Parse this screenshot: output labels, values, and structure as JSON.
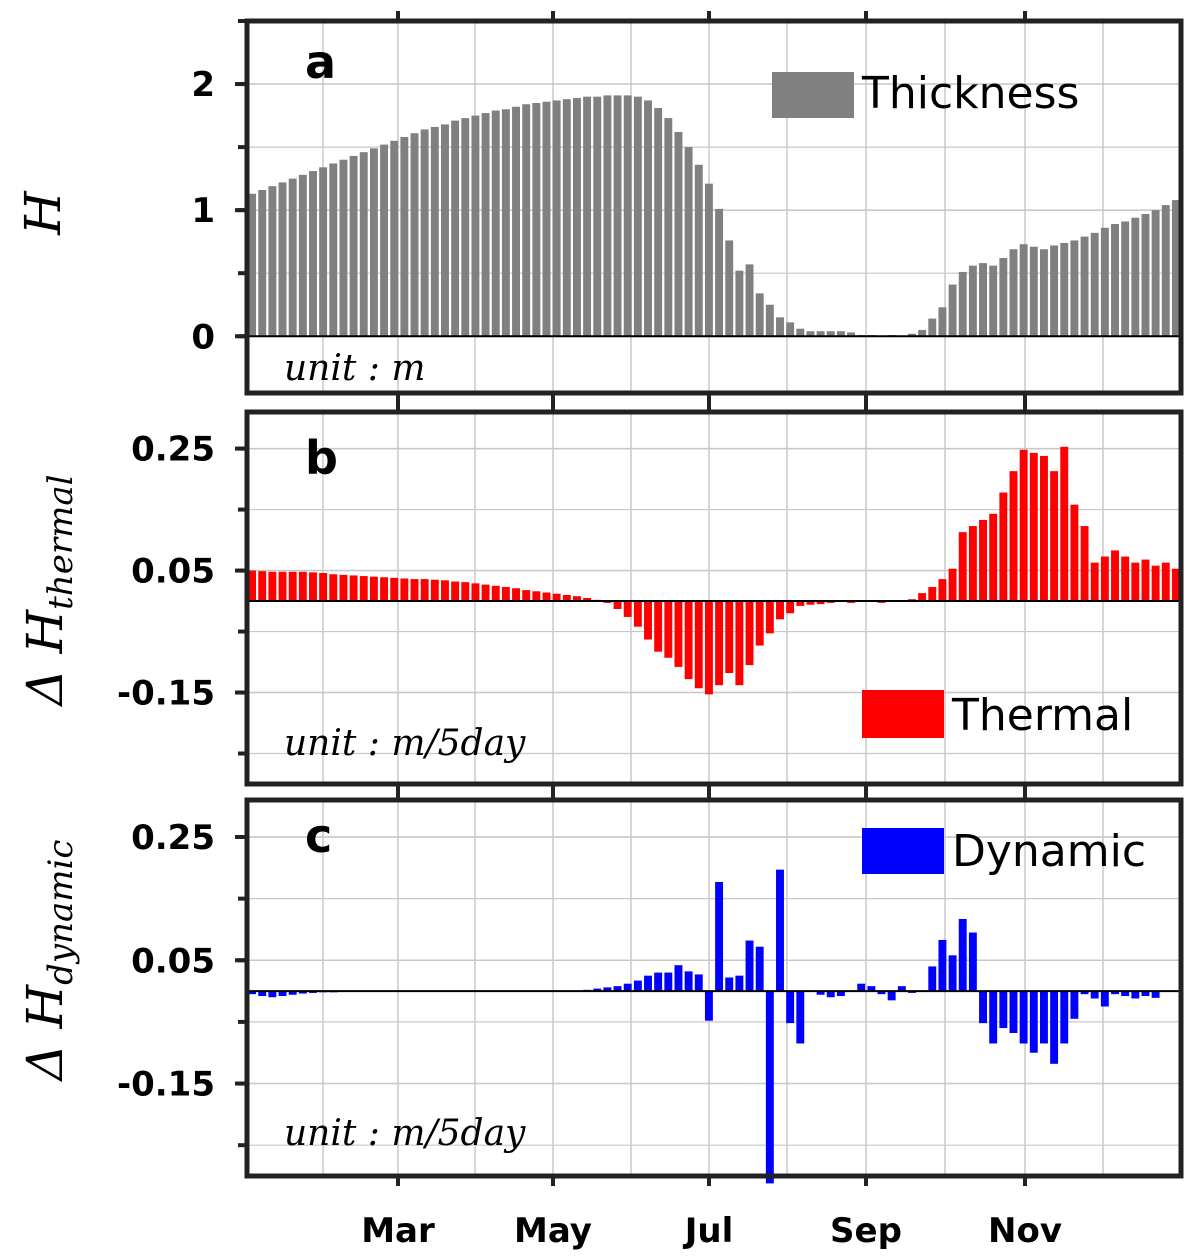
{
  "chart_data": [
    {
      "type": "bar",
      "panel": "a",
      "ylabel": "H",
      "unit": "unit : m",
      "ylim": [
        -0.45,
        2.5
      ],
      "yticks": [
        "0",
        "1",
        "2"
      ],
      "ytick_values": [
        0,
        1,
        2
      ],
      "legend": {
        "label": "Thickness",
        "color": "#808080",
        "position": "top-right"
      },
      "color": "#808080",
      "values": [
        1.13,
        1.16,
        1.19,
        1.22,
        1.25,
        1.28,
        1.31,
        1.34,
        1.37,
        1.4,
        1.43,
        1.46,
        1.49,
        1.52,
        1.55,
        1.58,
        1.61,
        1.64,
        1.66,
        1.68,
        1.71,
        1.73,
        1.75,
        1.77,
        1.79,
        1.8,
        1.82,
        1.84,
        1.85,
        1.86,
        1.87,
        1.88,
        1.89,
        1.9,
        1.9,
        1.91,
        1.91,
        1.91,
        1.9,
        1.87,
        1.81,
        1.73,
        1.62,
        1.5,
        1.36,
        1.21,
        1.01,
        0.76,
        0.52,
        0.57,
        0.34,
        0.25,
        0.15,
        0.11,
        0.06,
        0.04,
        0.04,
        0.04,
        0.04,
        0.03,
        0.01,
        0.01,
        0.0,
        0.01,
        0.0,
        0.02,
        0.05,
        0.14,
        0.23,
        0.41,
        0.51,
        0.56,
        0.58,
        0.56,
        0.62,
        0.69,
        0.73,
        0.71,
        0.69,
        0.72,
        0.74,
        0.76,
        0.79,
        0.82,
        0.86,
        0.89,
        0.91,
        0.94,
        0.97,
        1.0,
        1.04,
        1.08
      ]
    },
    {
      "type": "bar",
      "panel": "b",
      "ylabel": "Δ H_thermal",
      "unit": "unit : m/5day",
      "ylim": [
        -0.3,
        0.31
      ],
      "yticks": [
        "0.25",
        "0.05",
        "-0.15"
      ],
      "ytick_values": [
        0.25,
        0.05,
        -0.15
      ],
      "legend": {
        "label": "Thermal",
        "color": "#ff0000",
        "position": "bottom-right"
      },
      "color": "#ff0000",
      "values": [
        0.05,
        0.049,
        0.048,
        0.048,
        0.048,
        0.048,
        0.047,
        0.046,
        0.044,
        0.043,
        0.042,
        0.041,
        0.04,
        0.039,
        0.038,
        0.037,
        0.036,
        0.036,
        0.035,
        0.034,
        0.032,
        0.031,
        0.029,
        0.027,
        0.025,
        0.023,
        0.021,
        0.018,
        0.016,
        0.014,
        0.012,
        0.01,
        0.008,
        0.005,
        0.002,
        -0.003,
        -0.013,
        -0.026,
        -0.042,
        -0.063,
        -0.083,
        -0.093,
        -0.108,
        -0.128,
        -0.143,
        -0.153,
        -0.138,
        -0.118,
        -0.138,
        -0.105,
        -0.073,
        -0.053,
        -0.03,
        -0.02,
        -0.008,
        -0.006,
        -0.005,
        -0.003,
        0.0,
        -0.003,
        0.0,
        0.0,
        -0.003,
        0.0,
        0.0,
        0.003,
        0.013,
        0.023,
        0.036,
        0.053,
        0.113,
        0.123,
        0.133,
        0.143,
        0.178,
        0.213,
        0.248,
        0.243,
        0.238,
        0.213,
        0.253,
        0.158,
        0.123,
        0.063,
        0.073,
        0.083,
        0.073,
        0.063,
        0.068,
        0.058,
        0.063,
        0.053
      ]
    },
    {
      "type": "bar",
      "panel": "c",
      "ylabel": "Δ H_dynamic",
      "unit": "unit : m/5day",
      "ylim": [
        -0.3,
        0.31
      ],
      "yticks": [
        "0.25",
        "0.05",
        "-0.15"
      ],
      "ytick_values": [
        0.25,
        0.05,
        -0.15
      ],
      "legend": {
        "label": "Dynamic",
        "color": "#0000ff",
        "position": "top-right"
      },
      "color": "#0000ff",
      "values": [
        -0.005,
        -0.008,
        -0.01,
        -0.008,
        -0.006,
        -0.004,
        -0.003,
        -0.002,
        -0.002,
        -0.001,
        -0.001,
        -0.001,
        -0.001,
        -0.001,
        -0.001,
        -0.001,
        -0.001,
        -0.001,
        -0.001,
        0.0,
        0.0,
        0.0,
        0.0,
        0.0,
        0.0,
        0.0,
        0.0,
        0.0,
        0.0,
        0.0,
        0.001,
        0.001,
        0.001,
        0.002,
        0.004,
        0.006,
        0.008,
        0.012,
        0.017,
        0.025,
        0.03,
        0.03,
        0.042,
        0.032,
        0.027,
        -0.048,
        0.177,
        0.022,
        0.025,
        0.082,
        0.072,
        -0.312,
        0.197,
        -0.052,
        -0.085,
        0.0,
        -0.006,
        -0.01,
        -0.008,
        -0.001,
        0.012,
        0.008,
        -0.005,
        -0.015,
        0.008,
        -0.003,
        -0.001,
        0.04,
        0.083,
        0.058,
        0.117,
        0.095,
        -0.052,
        -0.085,
        -0.06,
        -0.068,
        -0.085,
        -0.1,
        -0.085,
        -0.118,
        -0.085,
        -0.045,
        -0.005,
        -0.012,
        -0.025,
        -0.005,
        -0.008,
        -0.012,
        -0.008,
        -0.011,
        0.0,
        0.0
      ],
      "xticks": [
        "Mar",
        "May",
        "Jul",
        "Sep",
        "Nov"
      ]
    }
  ],
  "xaxis": {
    "tick_labels": [
      "Mar",
      "May",
      "Jul",
      "Sep",
      "Nov"
    ]
  }
}
